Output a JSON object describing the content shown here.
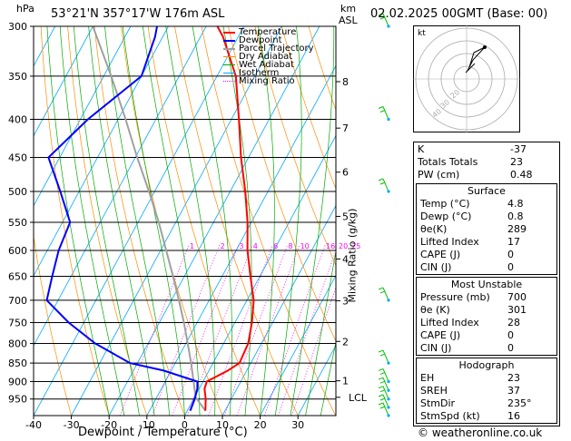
{
  "header": {
    "hpa_label": "hPa",
    "location": "53°21'N  357°17'W  176m  ASL",
    "km_label": "km",
    "asl_label": "ASL",
    "datetime": "02.02.2025  00GMT  (Base: 00)"
  },
  "legend": [
    {
      "label": "Temperature",
      "color": "#ff0000"
    },
    {
      "label": "Dewpoint",
      "color": "#0000ff"
    },
    {
      "label": "Parcel Trajectory",
      "color": "#808080"
    },
    {
      "label": "Dry Adiabat",
      "color": "#ff8000"
    },
    {
      "label": "Wet Adiabat",
      "color": "#00b000"
    },
    {
      "label": "Isotherm",
      "color": "#00a0ff"
    },
    {
      "label": "Mixing Ratio",
      "color": "#ff00ff"
    }
  ],
  "chart_data": {
    "type": "line",
    "title": "",
    "xlabel": "Dewpoint / Temperature (°C)",
    "ylabel": "hPa",
    "y2label": "Mixing Ratio (g/kg)",
    "pressure_ticks": [
      300,
      350,
      400,
      450,
      500,
      550,
      600,
      650,
      700,
      750,
      800,
      850,
      900,
      950
    ],
    "temp_ticks": [
      -40,
      -30,
      -20,
      -10,
      0,
      10,
      20,
      30
    ],
    "xlim": [
      -40,
      40
    ],
    "ylim": [
      1000,
      300
    ],
    "km_ticks": [
      {
        "km": "8",
        "p": 356
      },
      {
        "km": "7",
        "p": 411
      },
      {
        "km": "6",
        "p": 471
      },
      {
        "km": "5",
        "p": 540
      },
      {
        "km": "4",
        "p": 616
      },
      {
        "km": "3",
        "p": 701
      },
      {
        "km": "2",
        "p": 795
      },
      {
        "km": "1",
        "p": 898
      }
    ],
    "lcl_label": "LCL",
    "lcl_p": 945,
    "mixing_ratio_labels": [
      "1",
      "2",
      "3",
      "4",
      "6",
      "8",
      "10",
      "16",
      "20",
      "25"
    ],
    "mixing_ratio_values": [
      1,
      2,
      3,
      4,
      6,
      8,
      10,
      16,
      20,
      25
    ],
    "series": [
      {
        "name": "Temperature",
        "color": "#ff0000",
        "points": [
          [
            4.8,
            985
          ],
          [
            3.2,
            950
          ],
          [
            1.4,
            920
          ],
          [
            1.0,
            900
          ],
          [
            5.0,
            870
          ],
          [
            7.0,
            850
          ],
          [
            6.5,
            800
          ],
          [
            4.5,
            750
          ],
          [
            1.8,
            700
          ],
          [
            -2.5,
            650
          ],
          [
            -7.0,
            600
          ],
          [
            -11.0,
            550
          ],
          [
            -16.0,
            500
          ],
          [
            -22.0,
            450
          ],
          [
            -28.0,
            400
          ],
          [
            -35.0,
            350
          ],
          [
            -44.0,
            310
          ],
          [
            -47.0,
            300
          ]
        ]
      },
      {
        "name": "Dewpoint",
        "color": "#0000ff",
        "points": [
          [
            0.8,
            985
          ],
          [
            0.3,
            950
          ],
          [
            -0.5,
            920
          ],
          [
            -1.5,
            900
          ],
          [
            -12.0,
            870
          ],
          [
            -22.0,
            850
          ],
          [
            -34.0,
            800
          ],
          [
            -44.0,
            750
          ],
          [
            -53.0,
            700
          ],
          [
            -55.0,
            650
          ],
          [
            -57.0,
            600
          ],
          [
            -58.0,
            550
          ],
          [
            -65.0,
            500
          ],
          [
            -73.0,
            450
          ],
          [
            -68.0,
            400
          ],
          [
            -60.0,
            350
          ],
          [
            -62.0,
            310
          ],
          [
            -63.0,
            300
          ]
        ]
      },
      {
        "name": "Parcel Trajectory",
        "color": "#808080",
        "points": [
          [
            4.8,
            985
          ],
          [
            0.3,
            945
          ],
          [
            -2.5,
            900
          ],
          [
            -5.8,
            850
          ],
          [
            -9.5,
            800
          ],
          [
            -13.5,
            750
          ],
          [
            -18.0,
            700
          ],
          [
            -23.0,
            650
          ],
          [
            -28.5,
            600
          ],
          [
            -34.5,
            550
          ],
          [
            -41.5,
            500
          ],
          [
            -49.5,
            450
          ],
          [
            -58.0,
            400
          ],
          [
            -68.0,
            350
          ],
          [
            -80.0,
            300
          ]
        ]
      }
    ]
  },
  "hodograph": {
    "label": "kt",
    "ring_labels": [
      "40",
      "30",
      "20"
    ]
  },
  "indices": [
    {
      "label": "K",
      "value": "-37"
    },
    {
      "label": "Totals Totals",
      "value": "23"
    },
    {
      "label": "PW (cm)",
      "value": "0.48"
    }
  ],
  "surface": {
    "title": "Surface",
    "rows": [
      {
        "label": "Temp (°C)",
        "value": "4.8"
      },
      {
        "label": "Dewp (°C)",
        "value": "0.8"
      },
      {
        "label": "θe(K)",
        "value": "289"
      },
      {
        "label": "Lifted Index",
        "value": "17"
      },
      {
        "label": "CAPE (J)",
        "value": "0"
      },
      {
        "label": "CIN (J)",
        "value": "0"
      }
    ]
  },
  "most_unstable": {
    "title": "Most Unstable",
    "rows": [
      {
        "label": "Pressure (mb)",
        "value": "700"
      },
      {
        "label": "θe (K)",
        "value": "301"
      },
      {
        "label": "Lifted Index",
        "value": "28"
      },
      {
        "label": "CAPE (J)",
        "value": "0"
      },
      {
        "label": "CIN (J)",
        "value": "0"
      }
    ]
  },
  "hodograph_table": {
    "title": "Hodograph",
    "rows": [
      {
        "label": "EH",
        "value": "23"
      },
      {
        "label": "SREH",
        "value": "37"
      },
      {
        "label": "StmDir",
        "value": "235°"
      },
      {
        "label": "StmSpd (kt)",
        "value": "16"
      }
    ]
  },
  "footer": "© weatheronline.co.uk",
  "colors": {
    "temperature": "#ff0000",
    "dewpoint": "#0000ff",
    "parcel": "#a0a0a0",
    "dry": "#ff8c00",
    "wet": "#00aa00",
    "isotherm": "#00a8ff",
    "mixing": "#ff00ff",
    "wind": "#00c000"
  }
}
